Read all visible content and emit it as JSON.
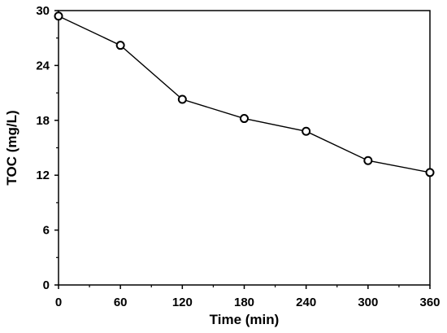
{
  "chart_data": {
    "type": "line",
    "title": "",
    "xlabel": "Time (min)",
    "ylabel": "TOC (mg/L)",
    "xlim": [
      0,
      360
    ],
    "ylim": [
      0,
      30
    ],
    "x_ticks": [
      0,
      60,
      120,
      180,
      240,
      300,
      360
    ],
    "y_ticks": [
      0,
      6,
      12,
      18,
      24,
      30
    ],
    "grid": false,
    "legend": "none",
    "series": [
      {
        "x": [
          0,
          60,
          120,
          180,
          240,
          300,
          360
        ],
        "values": [
          29.4,
          26.2,
          20.3,
          18.2,
          16.8,
          13.6,
          12.3
        ],
        "marker": "open-circle",
        "color": "#000000"
      }
    ]
  }
}
